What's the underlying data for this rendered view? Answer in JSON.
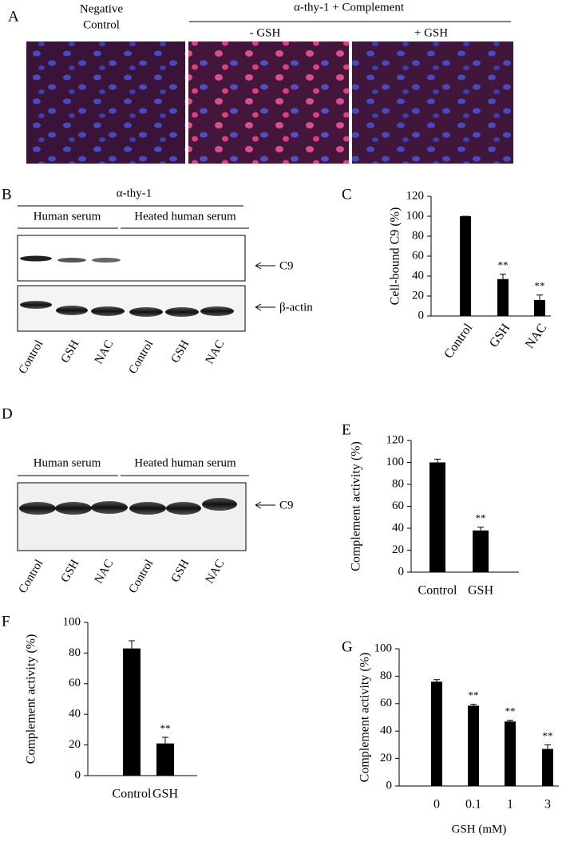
{
  "panels": {
    "A": {
      "label": "A",
      "negative": [
        "Negative",
        "Control"
      ],
      "treatment": "α-thy-1 + Complement",
      "minus": "- GSH",
      "plus": "+ GSH"
    },
    "B": {
      "label": "B",
      "antibody": "α-thy-1",
      "serum": "Human serum",
      "heated": "Heated human serum",
      "band1": "C9",
      "band2": "β-actin",
      "lanes": [
        "Control",
        "GSH",
        "NAC",
        "Control",
        "GSH",
        "NAC"
      ]
    },
    "C": {
      "label": "C"
    },
    "D": {
      "label": "D",
      "serum": "Human serum",
      "heated": "Heated human serum",
      "band1": "C9",
      "lanes": [
        "Control",
        "GSH",
        "NAC",
        "Control",
        "GSH",
        "NAC"
      ]
    },
    "E": {
      "label": "E"
    },
    "F": {
      "label": "F"
    },
    "G": {
      "label": "G"
    }
  },
  "chart_data": [
    {
      "type": "bar",
      "ylabel": "Cell-bound C9 (%)",
      "categories": [
        "Control",
        "GSH",
        "NAC"
      ],
      "values": [
        100,
        37,
        16
      ],
      "errors": [
        0,
        5,
        5
      ],
      "annotations": [
        null,
        "**",
        "**"
      ],
      "color": "#000000",
      "ylim": [
        0,
        120
      ],
      "yticks": [
        0,
        20,
        40,
        60,
        80,
        100,
        120
      ]
    },
    {
      "type": "bar",
      "ylabel": "Complement activity (%)",
      "categories": [
        "Control",
        "GSH"
      ],
      "values": [
        100,
        38
      ],
      "errors": [
        3,
        3
      ],
      "annotations": [
        null,
        "**"
      ],
      "color": "#000000",
      "ylim": [
        0,
        120
      ],
      "yticks": [
        0,
        20,
        40,
        60,
        80,
        100,
        120
      ]
    },
    {
      "type": "bar",
      "ylabel": "Complement activity (%)",
      "categories": [
        "Control",
        "GSH"
      ],
      "values": [
        83,
        21
      ],
      "errors": [
        5,
        4
      ],
      "annotations": [
        null,
        "**"
      ],
      "color": "#000000",
      "ylim": [
        0,
        100
      ],
      "yticks": [
        0,
        20,
        40,
        60,
        80,
        100
      ]
    },
    {
      "type": "bar",
      "ylabel": "Complement activity (%)",
      "xlabel": "GSH (mM)",
      "categories": [
        "0",
        "0.1",
        "1",
        "3"
      ],
      "values": [
        76,
        58.5,
        47,
        27
      ],
      "errors": [
        1.5,
        1,
        1,
        3
      ],
      "annotations": [
        null,
        "**",
        "**",
        "**"
      ],
      "color": "#000000",
      "ylim": [
        0,
        100
      ],
      "yticks": [
        0,
        20,
        40,
        60,
        80,
        100
      ]
    }
  ]
}
